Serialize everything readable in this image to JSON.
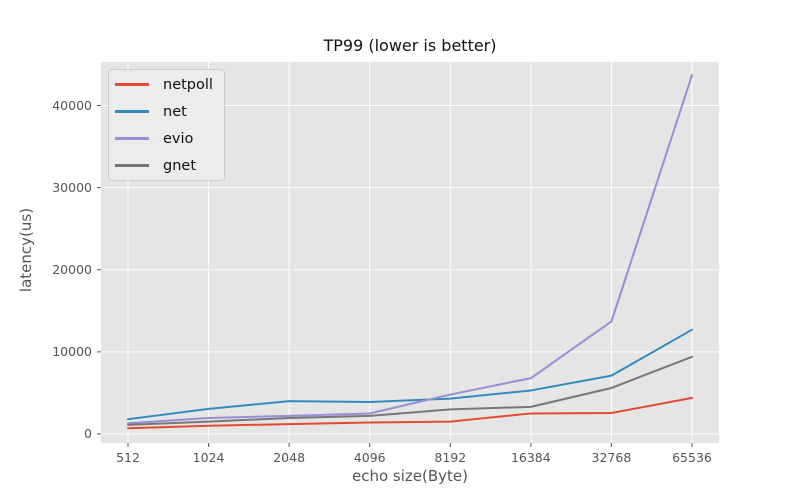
{
  "chart_data": {
    "type": "line",
    "title": "TP99 (lower is better)",
    "xlabel": "echo size(Byte)",
    "ylabel": "latency(us)",
    "categories": [
      "512",
      "1024",
      "2048",
      "4096",
      "8192",
      "16384",
      "32768",
      "65536"
    ],
    "x_values": [
      512,
      1024,
      2048,
      4096,
      8192,
      16384,
      32768,
      65536
    ],
    "x_scale": "categorical",
    "series": [
      {
        "name": "netpoll",
        "color": "#E24A33",
        "values": [
          700,
          1000,
          1200,
          1400,
          1500,
          2500,
          2550,
          4400
        ]
      },
      {
        "name": "net",
        "color": "#348ABD",
        "values": [
          1800,
          3050,
          4000,
          3900,
          4300,
          5300,
          7100,
          12700
        ]
      },
      {
        "name": "evio",
        "color": "#988ED5",
        "values": [
          1300,
          1950,
          2200,
          2500,
          4800,
          6800,
          13700,
          43700
        ]
      },
      {
        "name": "gnet",
        "color": "#777777",
        "values": [
          1100,
          1500,
          1950,
          2200,
          3000,
          3300,
          5600,
          9400
        ]
      }
    ],
    "yticks": [
      0,
      10000,
      20000,
      30000,
      40000
    ],
    "ylim": [
      -1100,
      45300
    ],
    "grid": true,
    "legend_position": "upper left",
    "colors": {
      "plot_bg": "#E5E5E5",
      "grid": "#FFFFFF",
      "tick": "#555555",
      "title_text": "#111111",
      "legend_bg": "#ECECEA",
      "legend_border": "#CCCCCC"
    }
  }
}
